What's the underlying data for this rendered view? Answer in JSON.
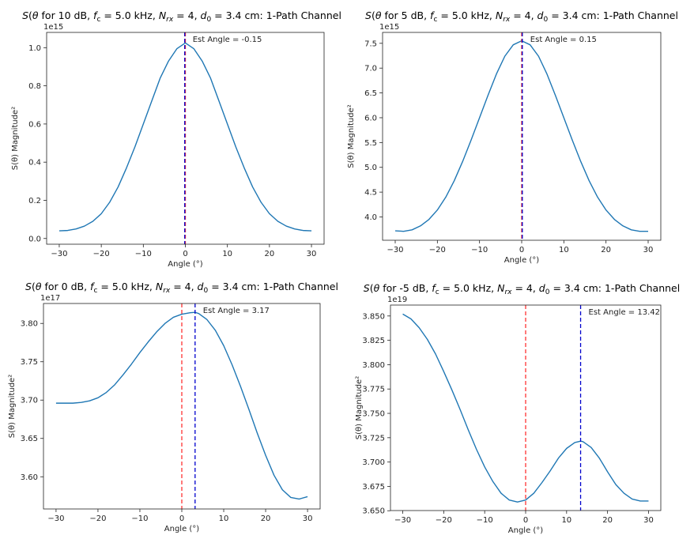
{
  "chart_data": [
    {
      "type": "line",
      "title_prefix": "S(θ) for 10 dB, ",
      "title_suffix": ": 1-Path Channel",
      "title_params": "f_c = 5.0 kHz, N_rx = 4, d_0 = 3.4 cm",
      "title_text": "S(θ) for 10 dB, fc = 5.0 kHz, Nrx = 4, d0 = 3.4 cm: 1-Path Channel",
      "xlabel": "Angle (°)",
      "ylabel": "S(θ) Magnitude²",
      "xlim": [
        -33,
        33
      ],
      "ylim": [
        -0.03,
        1.08
      ],
      "offset_label": "1e15",
      "x_ticks": [
        -30,
        -20,
        -10,
        0,
        10,
        20,
        30
      ],
      "x_tick_labels": [
        "−30",
        "−20",
        "−10",
        "0",
        "10",
        "20",
        "30"
      ],
      "y_ticks": [
        0.0,
        0.2,
        0.4,
        0.6,
        0.8,
        1.0
      ],
      "y_tick_labels": [
        "0.0",
        "0.2",
        "0.4",
        "0.6",
        "0.8",
        "1.0"
      ],
      "series": [
        {
          "name": "S(θ)",
          "color": "#1f77b4",
          "x": [
            -30,
            -28,
            -26,
            -24,
            -22,
            -20,
            -18,
            -16,
            -14,
            -12,
            -10,
            -8,
            -6,
            -4,
            -2,
            0,
            2,
            4,
            6,
            8,
            10,
            12,
            14,
            16,
            18,
            20,
            22,
            24,
            26,
            28,
            30
          ],
          "y": [
            0.04,
            0.042,
            0.05,
            0.065,
            0.09,
            0.13,
            0.19,
            0.27,
            0.37,
            0.48,
            0.6,
            0.72,
            0.84,
            0.93,
            0.995,
            1.025,
            0.995,
            0.93,
            0.84,
            0.72,
            0.6,
            0.48,
            0.37,
            0.27,
            0.19,
            0.13,
            0.09,
            0.065,
            0.05,
            0.042,
            0.04
          ]
        }
      ],
      "true_angle": 0,
      "true_angle_color": "#ff0000",
      "est_angle": -0.15,
      "est_angle_color": "#0000cc",
      "annotation": "Est Angle = -0.15"
    },
    {
      "type": "line",
      "title_prefix": "S(θ) for 5 dB, ",
      "title_suffix": ": 1-Path Channel",
      "title_params": "f_c = 5.0 kHz, N_rx = 4, d_0 = 3.4 cm",
      "title_text": "S(θ) for 5 dB, fc = 5.0 kHz, Nrx = 4, d0 = 3.4 cm: 1-Path Channel",
      "xlabel": "Angle (°)",
      "ylabel": "S(θ) Magnitude²",
      "xlim": [
        -33,
        33
      ],
      "ylim": [
        3.53,
        7.72
      ],
      "offset_label": "1e15",
      "x_ticks": [
        -30,
        -20,
        -10,
        0,
        10,
        20,
        30
      ],
      "x_tick_labels": [
        "−30",
        "−20",
        "−10",
        "0",
        "10",
        "20",
        "30"
      ],
      "y_ticks": [
        4.0,
        4.5,
        5.0,
        5.5,
        6.0,
        6.5,
        7.0,
        7.5
      ],
      "y_tick_labels": [
        "4.0",
        "4.5",
        "5.0",
        "5.5",
        "6.0",
        "6.5",
        "7.0",
        "7.5"
      ],
      "series": [
        {
          "name": "S(θ)",
          "color": "#1f77b4",
          "x": [
            -30,
            -28,
            -26,
            -24,
            -22,
            -20,
            -18,
            -16,
            -14,
            -12,
            -10,
            -8,
            -6,
            -4,
            -2,
            0,
            2,
            4,
            6,
            8,
            10,
            12,
            14,
            16,
            18,
            20,
            22,
            24,
            26,
            28,
            30
          ],
          "y": [
            3.72,
            3.71,
            3.74,
            3.82,
            3.95,
            4.14,
            4.4,
            4.73,
            5.12,
            5.55,
            6.0,
            6.45,
            6.88,
            7.24,
            7.47,
            7.55,
            7.47,
            7.24,
            6.88,
            6.45,
            6.0,
            5.55,
            5.12,
            4.73,
            4.4,
            4.14,
            3.95,
            3.82,
            3.74,
            3.71,
            3.71
          ]
        }
      ],
      "true_angle": 0,
      "true_angle_color": "#ff0000",
      "est_angle": 0.15,
      "est_angle_color": "#0000cc",
      "annotation": "Est Angle = 0.15"
    },
    {
      "type": "line",
      "title_prefix": "S(θ) for 0 dB, ",
      "title_suffix": ": 1-Path Channel",
      "title_params": "f_c = 5.0 kHz, N_rx = 4, d_0 = 3.4 cm",
      "title_text": "S(θ) for 0 dB, fc = 5.0 kHz, Nrx = 4, d0 = 3.4 cm: 1-Path Channel",
      "xlabel": "Angle (°)",
      "ylabel": "S(θ) Magnitude²",
      "xlim": [
        -33,
        33
      ],
      "ylim": [
        3.558,
        3.826
      ],
      "offset_label": "1e17",
      "x_ticks": [
        -30,
        -20,
        -10,
        0,
        10,
        20,
        30
      ],
      "x_tick_labels": [
        "−30",
        "−20",
        "−10",
        "0",
        "10",
        "20",
        "30"
      ],
      "y_ticks": [
        3.6,
        3.65,
        3.7,
        3.75,
        3.8
      ],
      "y_tick_labels": [
        "3.60",
        "3.65",
        "3.70",
        "3.75",
        "3.80"
      ],
      "series": [
        {
          "name": "S(θ)",
          "color": "#1f77b4",
          "x": [
            -30,
            -28,
            -26,
            -24,
            -22,
            -20,
            -18,
            -16,
            -14,
            -12,
            -10,
            -8,
            -6,
            -4,
            -2,
            0,
            2,
            3.17,
            4,
            6,
            8,
            10,
            12,
            14,
            16,
            18,
            20,
            22,
            24,
            26,
            28,
            30
          ],
          "y": [
            3.696,
            3.696,
            3.696,
            3.697,
            3.699,
            3.703,
            3.71,
            3.72,
            3.733,
            3.747,
            3.762,
            3.776,
            3.789,
            3.8,
            3.808,
            3.812,
            3.814,
            3.8145,
            3.813,
            3.805,
            3.791,
            3.771,
            3.746,
            3.718,
            3.688,
            3.657,
            3.628,
            3.602,
            3.583,
            3.573,
            3.571,
            3.574
          ]
        }
      ],
      "true_angle": 0,
      "true_angle_color": "#ff0000",
      "est_angle": 3.17,
      "est_angle_color": "#0000cc",
      "annotation": "Est Angle = 3.17"
    },
    {
      "type": "line",
      "title_prefix": "S(θ) for -5 dB, ",
      "title_suffix": ": 1-Path Channel",
      "title_params": "f_c = 5.0 kHz, N_rx = 4, d_0 = 3.4 cm",
      "title_text": "S(θ) for -5 dB, fc = 5.0 kHz, Nrx = 4, d0 = 3.4 cm: 1-Path Channel",
      "xlabel": "Angle (°)",
      "ylabel": "S(θ) Magnitude²",
      "xlim": [
        -33,
        33
      ],
      "ylim": [
        3.6502,
        3.8612
      ],
      "offset_label": "1e19",
      "x_ticks": [
        -30,
        -20,
        -10,
        0,
        10,
        20,
        30
      ],
      "x_tick_labels": [
        "−30",
        "−20",
        "−10",
        "0",
        "10",
        "20",
        "30"
      ],
      "y_ticks": [
        3.65,
        3.675,
        3.7,
        3.725,
        3.75,
        3.775,
        3.8,
        3.825,
        3.85
      ],
      "y_tick_labels": [
        "3.650",
        "3.675",
        "3.700",
        "3.725",
        "3.750",
        "3.775",
        "3.800",
        "3.825",
        "3.850"
      ],
      "series": [
        {
          "name": "S(θ)",
          "color": "#1f77b4",
          "x": [
            -30,
            -28,
            -26,
            -24,
            -22,
            -20,
            -18,
            -16,
            -14,
            -12,
            -10,
            -8,
            -6,
            -4,
            -2,
            0,
            2,
            4,
            6,
            8,
            10,
            12,
            13.42,
            14,
            16,
            18,
            20,
            22,
            24,
            26,
            28,
            30
          ],
          "y": [
            3.852,
            3.847,
            3.838,
            3.826,
            3.811,
            3.793,
            3.774,
            3.754,
            3.733,
            3.713,
            3.695,
            3.68,
            3.668,
            3.661,
            3.659,
            3.661,
            3.668,
            3.679,
            3.691,
            3.704,
            3.714,
            3.72,
            3.7215,
            3.721,
            3.715,
            3.704,
            3.69,
            3.677,
            3.668,
            3.662,
            3.66,
            3.66
          ]
        }
      ],
      "true_angle": 0,
      "true_angle_color": "#ff0000",
      "est_angle": 13.42,
      "est_angle_color": "#0000cc",
      "annotation": "Est Angle = 13.42"
    }
  ]
}
